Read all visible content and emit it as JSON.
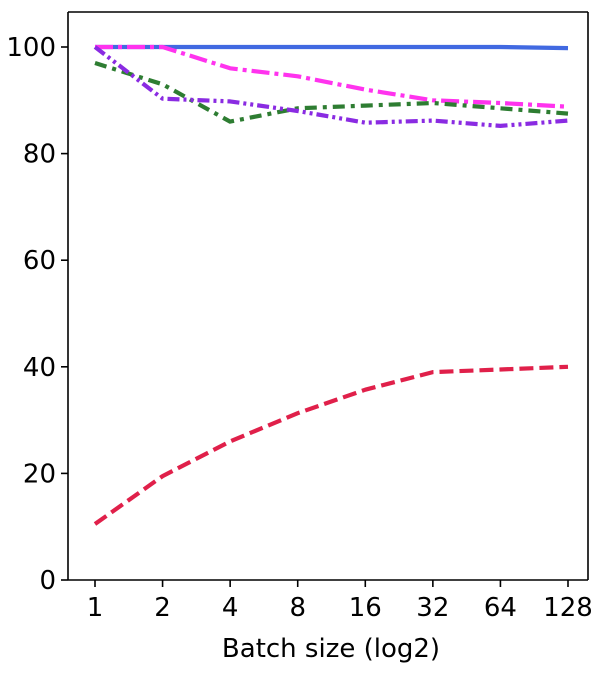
{
  "chart_data": {
    "type": "line",
    "title": "",
    "xlabel": "Batch size (log2)",
    "ylabel": "",
    "x_scale": "log2",
    "x": [
      1,
      2,
      4,
      8,
      16,
      32,
      64,
      128
    ],
    "x_tick_labels": [
      "1",
      "2",
      "4",
      "8",
      "16",
      "32",
      "64",
      "128"
    ],
    "ylim": [
      0,
      100
    ],
    "y_ticks": [
      0,
      20,
      40,
      60,
      80,
      100
    ],
    "y_tick_labels": [
      "0",
      "20",
      "40",
      "60",
      "80",
      "100"
    ],
    "grid": false,
    "legend": "none",
    "series": [
      {
        "color": "#4169e1",
        "dash": "solid",
        "values": [
          100,
          100,
          100,
          100,
          100,
          100,
          100,
          99.8
        ]
      },
      {
        "color": "#ff33ee",
        "dash": "dashdot",
        "values": [
          100,
          100,
          96,
          94.5,
          92,
          90,
          89.5,
          88.8
        ]
      },
      {
        "color": "#2e7d32",
        "dash": "densely-dashdot",
        "values": [
          97,
          93,
          86,
          88.5,
          89,
          89.5,
          88.5,
          87.5
        ]
      },
      {
        "color": "#8a2be2",
        "dash": "dashdotdot",
        "values": [
          100,
          90.3,
          89.8,
          88,
          85.8,
          86.2,
          85.2,
          86.2
        ]
      },
      {
        "color": "#e0204a",
        "dash": "dashed",
        "values": [
          10.5,
          19.5,
          26,
          31.3,
          35.7,
          39,
          39.5,
          40
        ]
      }
    ]
  }
}
